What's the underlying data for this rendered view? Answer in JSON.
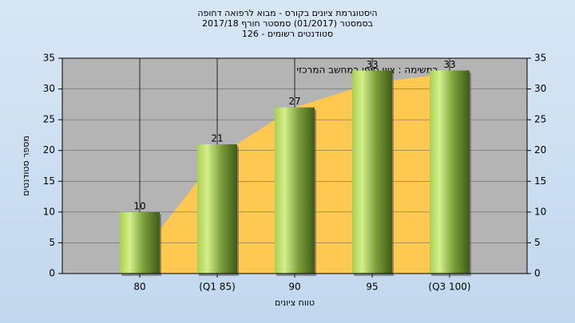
{
  "chart_data": {
    "type": "bar",
    "title_lines": [
      "היסטוגרמת ציונים בקורס - מבוא לרפואה דחופה",
      "בסמסטר  (01/2017)  סמסטר חורף 2017/18",
      "סטודנטים רשומים - 126"
    ],
    "annotation": "במשימה : ציון סופי במחשב המרכזי",
    "x_label": "טווח ציונים",
    "y_label": "מספר סטודנטים",
    "categories": [
      "80",
      "(Q1 85)",
      "90",
      "95",
      "(Q3 100)"
    ],
    "values": [
      10,
      21,
      27,
      33,
      33
    ],
    "background_area": {
      "color": "#ffc850",
      "values": [
        3,
        19,
        27,
        31,
        32.5
      ]
    },
    "ylim": [
      0,
      35
    ],
    "yticks": [
      0,
      5,
      10,
      15,
      20,
      25,
      30,
      35
    ],
    "grid": true
  }
}
